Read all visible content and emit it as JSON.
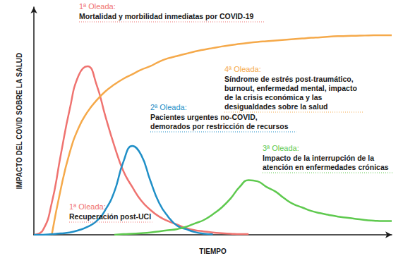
{
  "chart_data": {
    "type": "line",
    "x_label": "TIEMPO",
    "y_label": "IMPACTO DEL COVID SOBRE LA SALUD",
    "x": [
      0,
      2.5,
      5,
      7.5,
      10,
      12.5,
      15,
      17.5,
      20,
      22.5,
      25,
      27.5,
      30,
      32.5,
      35,
      37.5,
      40,
      42.5,
      45,
      47.5,
      50,
      52.5,
      55,
      57.5,
      60,
      62.5,
      65,
      67.5,
      70,
      72.5,
      75,
      77.5,
      80,
      82.5,
      85,
      87.5,
      90,
      92.5,
      95,
      97.5,
      100
    ],
    "xlim": [
      0,
      100
    ],
    "ylim": [
      0,
      100
    ],
    "tick_labels": false,
    "grid": false,
    "series": [
      {
        "color": "#ef7370",
        "values": [
          0,
          2,
          14,
          35,
          55,
          70,
          74,
          66,
          52,
          39,
          28,
          21,
          15,
          11,
          8,
          6,
          4.5,
          3,
          2,
          1.5,
          1,
          0.7,
          0.5,
          0.3,
          0.3,
          null,
          null,
          null,
          null,
          null,
          null,
          null,
          null,
          null,
          null,
          null,
          null,
          null,
          null,
          null,
          null
        ]
      },
      {
        "color": "#f5a94a",
        "values": [
          null,
          null,
          0,
          20,
          36,
          47,
          54,
          59,
          63,
          66,
          68.5,
          70.5,
          72.5,
          74,
          76,
          77.5,
          78.5,
          79.5,
          80.5,
          81.3,
          82,
          82.7,
          83.3,
          83.8,
          84.3,
          84.7,
          85,
          85.3,
          85.6,
          85.9,
          86.2,
          86.5,
          86.7,
          87,
          87.2,
          87.3,
          87.4,
          87.5,
          87.6,
          87.6,
          87.6
        ]
      },
      {
        "color": "#1f8fc7",
        "values": [
          0,
          0,
          0.3,
          0.6,
          1,
          2,
          3.5,
          6,
          11,
          19,
          32,
          39,
          35,
          24,
          14,
          8,
          4,
          2.5,
          1.2,
          0.5,
          0.2,
          null,
          null,
          null,
          null,
          null,
          null,
          null,
          null,
          null,
          null,
          null,
          null,
          null,
          null,
          null,
          null,
          null,
          null,
          null,
          null
        ]
      },
      {
        "color": "#5ec94e",
        "values": [
          null,
          null,
          null,
          null,
          null,
          null,
          null,
          null,
          null,
          0,
          0.3,
          0.5,
          0.7,
          1,
          1.5,
          2,
          2.5,
          3.5,
          5,
          6.5,
          9,
          12,
          16,
          21,
          24,
          23.5,
          21,
          19,
          16,
          13.5,
          12,
          10.5,
          9.5,
          8.7,
          8,
          7.5,
          7,
          6.5,
          6.2,
          6,
          6
        ]
      }
    ],
    "annotations": [
      {
        "title": "1ª Oleada:",
        "text": "Mortalidad y morbilidad inmediatas por COVID-19",
        "color": "#ef7370"
      },
      {
        "title": "4ª Oleada:",
        "text": "Síndrome de estrés post-traumático,\nburnout, enfermedad mental, impacto\nde la crisis económica y las\ndesigualdades sobre la salud",
        "color": "#f5a94a"
      },
      {
        "title": "2ª Oleada:",
        "text": "Pacientes urgentes no-COVID,\ndemorados por restricción de recursos",
        "color": "#1f8fc7"
      },
      {
        "title": "3ª Oleada:",
        "text": "Impacto de la interrupción de la\natención en enfermedades crónicas",
        "color": "#5ec94e"
      },
      {
        "title": "1ª Oleada:",
        "text": "Recuperación post-UCI",
        "color": "#ef7370"
      }
    ]
  }
}
